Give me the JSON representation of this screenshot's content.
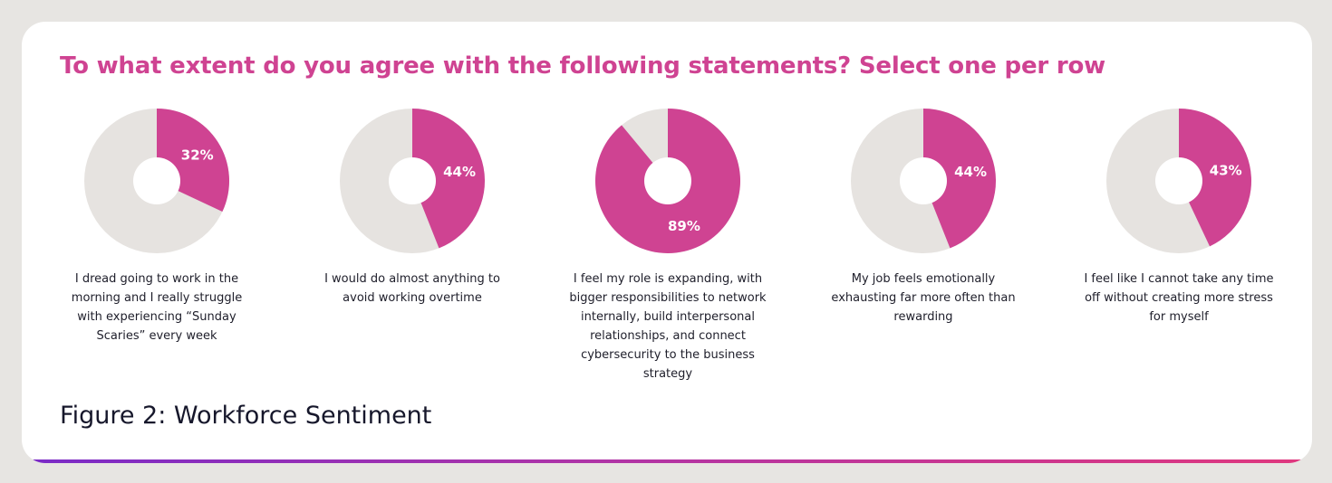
{
  "title": "To what extent do you agree with the following statements? Select one per row",
  "caption": "Figure 2: Workforce Sentiment",
  "colors": {
    "accent": "#cf4392",
    "remainder": "#e6e3e0",
    "hole": "#ffffff"
  },
  "chart_data": {
    "type": "pie",
    "title": "To what extent do you agree with the following statements? Select one per row",
    "donut": true,
    "charts": [
      {
        "statement": "I dread going to work in the morning and I really struggle with experiencing “Sunday Scaries” every week",
        "value": 32,
        "label": "32%"
      },
      {
        "statement": "I would do almost anything to avoid working overtime",
        "value": 44,
        "label": "44%"
      },
      {
        "statement": "I feel my role is expanding, with bigger responsibilities to network internally, build interpersonal relationships, and connect cybersecurity to the business strategy",
        "value": 89,
        "label": "89%"
      },
      {
        "statement": "My job feels emotionally exhausting far more often than rewarding",
        "value": 44,
        "label": "44%"
      },
      {
        "statement": "I feel like I cannot take any time off without creating more stress for myself",
        "value": 43,
        "label": "43%"
      }
    ]
  }
}
